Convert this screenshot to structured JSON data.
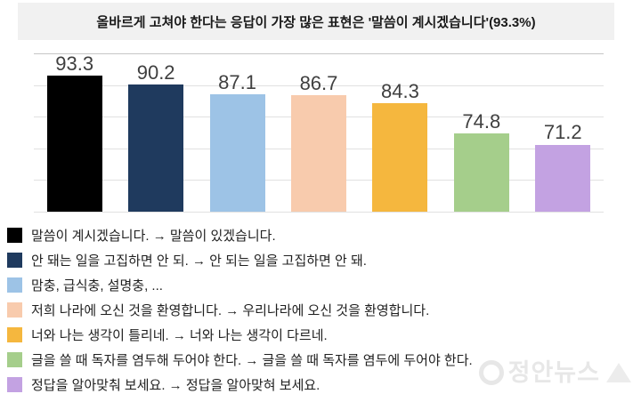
{
  "title": {
    "text": "올바르게 고쳐야 한다는 응답이 가장 많은 표현은 '말씀이 계시겠습니다'(93.3%)"
  },
  "chart_data": {
    "type": "bar",
    "title": "올바르게 고쳐야 한다는 응답이 가장 많은 표현은 '말씀이 계시겠습니다'(93.3%)",
    "categories": [
      "말씀이 계시겠습니다",
      "안 돼는 일을 고집하면 안 되",
      "맘충, 급식충, 설명충",
      "저희 나라에 오신 것을 환영합니다",
      "너와 나는 생각이 틀리네",
      "글을 쓸 때 독자를 염두해 두어야 한다",
      "정답을 알아맞춰 보세요"
    ],
    "values": [
      93.3,
      90.2,
      87.1,
      86.7,
      84.3,
      74.8,
      71.2
    ],
    "bar_colors": [
      "#000000",
      "#1f3a5e",
      "#9dc3e6",
      "#f8cbad",
      "#f5b73e",
      "#a5ce8b",
      "#c3a2e2"
    ],
    "value_label_color": "#3f3f3f",
    "xlabel": "",
    "ylabel": "",
    "ylim": [
      50,
      100
    ],
    "grid": true,
    "gridline_step": 10,
    "legend_position": "bottom"
  },
  "legend": {
    "items": [
      {
        "color": "#000000",
        "label": "말씀이 계시겠습니다. → 말씀이 있겠습니다."
      },
      {
        "color": "#1f3a5e",
        "label": "안 돼는 일을 고집하면 안 되. → 안 되는 일을 고집하면 안 돼."
      },
      {
        "color": "#9dc3e6",
        "label": "맘충, 급식충, 설명충, ..."
      },
      {
        "color": "#f8cbad",
        "label": "저희 나라에 오신 것을 환영합니다. → 우리나라에 오신 것을 환영합니다."
      },
      {
        "color": "#f5b73e",
        "label": "너와 나는 생각이 틀리네. → 너와 나는 생각이 다르네."
      },
      {
        "color": "#a5ce8b",
        "label": "글을 쓸 때 독자를 염두해 두어야 한다. → 글을 쓸 때 독자를 염두에 두어야 한다."
      },
      {
        "color": "#c3a2e2",
        "label": "정답을 알아맞춰 보세요. → 정답을 알아맞혀 보세요."
      }
    ]
  },
  "watermark": {
    "text": "정안뉴스"
  }
}
